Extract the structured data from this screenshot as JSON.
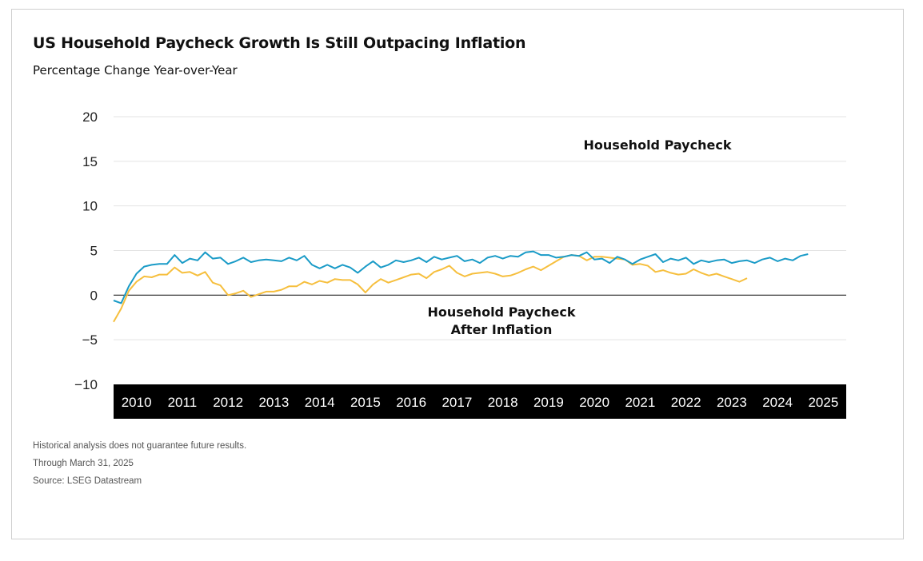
{
  "title": "US Household Paycheck Growth Is Still Outpacing Inflation",
  "subtitle": "Percentage Change Year-over-Year",
  "footnotes": [
    "Historical analysis does not guarantee future results.",
    "Through March 31, 2025",
    "Source: LSEG Datastream"
  ],
  "colors": {
    "household_paycheck": "#1a9bc7",
    "after_inflation": "#f6bf3e",
    "axis_band": "#000000",
    "gridline": "#e3e3e3"
  },
  "chart_data": {
    "type": "line",
    "title": "US Household Paycheck Growth Is Still Outpacing Inflation",
    "subtitle": "Percentage Change Year-over-Year",
    "xlabel": "",
    "ylabel": "",
    "ylim": [
      -10,
      20
    ],
    "yticks": [
      20,
      15,
      10,
      5,
      0,
      -5,
      -10
    ],
    "ytick_labels": [
      "20",
      "15",
      "10",
      "5",
      "0",
      "−5",
      "−10"
    ],
    "xlim": [
      "2010-01",
      "2025-12"
    ],
    "xticks": [
      "2010",
      "2011",
      "2012",
      "2013",
      "2014",
      "2015",
      "2016",
      "2017",
      "2018",
      "2019",
      "2020",
      "2021",
      "2022",
      "2023",
      "2024",
      "2025"
    ],
    "grid": true,
    "legend": "none",
    "annotations": [
      {
        "text": "Household Paycheck",
        "series": 0
      },
      {
        "text": "Household Paycheck After Inflation",
        "lines": [
          "Household Paycheck",
          "After Inflation"
        ],
        "series": 1
      }
    ],
    "series": [
      {
        "name": "Household Paycheck",
        "color": "#1a9bc7",
        "points": [
          [
            "2010-01",
            -0.6
          ],
          [
            "2010-03",
            -0.9
          ],
          [
            "2010-05",
            1.0
          ],
          [
            "2010-07",
            2.4
          ],
          [
            "2010-09",
            3.2
          ],
          [
            "2010-11",
            3.4
          ],
          [
            "2011-01",
            3.5
          ],
          [
            "2011-03",
            3.5
          ],
          [
            "2011-05",
            4.5
          ],
          [
            "2011-07",
            3.6
          ],
          [
            "2011-09",
            4.1
          ],
          [
            "2011-11",
            3.9
          ],
          [
            "2012-01",
            4.8
          ],
          [
            "2012-03",
            4.1
          ],
          [
            "2012-05",
            4.2
          ],
          [
            "2012-07",
            3.5
          ],
          [
            "2012-09",
            3.8
          ],
          [
            "2012-11",
            4.2
          ],
          [
            "2013-01",
            3.7
          ],
          [
            "2013-03",
            3.9
          ],
          [
            "2013-05",
            4.0
          ],
          [
            "2013-07",
            3.9
          ],
          [
            "2013-09",
            3.8
          ],
          [
            "2013-11",
            4.2
          ],
          [
            "2014-01",
            3.9
          ],
          [
            "2014-03",
            4.4
          ],
          [
            "2014-05",
            3.4
          ],
          [
            "2014-07",
            3.0
          ],
          [
            "2014-09",
            3.4
          ],
          [
            "2014-11",
            3.0
          ],
          [
            "2015-01",
            3.4
          ],
          [
            "2015-03",
            3.1
          ],
          [
            "2015-05",
            2.5
          ],
          [
            "2015-07",
            3.2
          ],
          [
            "2015-09",
            3.8
          ],
          [
            "2015-11",
            3.1
          ],
          [
            "2016-01",
            3.4
          ],
          [
            "2016-03",
            3.9
          ],
          [
            "2016-05",
            3.7
          ],
          [
            "2016-07",
            3.9
          ],
          [
            "2016-09",
            4.2
          ],
          [
            "2016-11",
            3.7
          ],
          [
            "2017-01",
            4.3
          ],
          [
            "2017-03",
            4.0
          ],
          [
            "2017-05",
            4.2
          ],
          [
            "2017-07",
            4.4
          ],
          [
            "2017-09",
            3.8
          ],
          [
            "2017-11",
            4.0
          ],
          [
            "2018-01",
            3.6
          ],
          [
            "2018-03",
            4.2
          ],
          [
            "2018-05",
            4.4
          ],
          [
            "2018-07",
            4.1
          ],
          [
            "2018-09",
            4.4
          ],
          [
            "2018-11",
            4.3
          ],
          [
            "2019-01",
            4.8
          ],
          [
            "2019-03",
            4.9
          ],
          [
            "2019-05",
            4.5
          ],
          [
            "2019-07",
            4.5
          ],
          [
            "2019-09",
            4.2
          ],
          [
            "2019-11",
            4.3
          ],
          [
            "2020-01",
            4.5
          ],
          [
            "2020-03",
            4.4
          ],
          [
            "2020-05",
            4.8
          ],
          [
            "2020-07",
            4.0
          ],
          [
            "2020-09",
            4.1
          ],
          [
            "2020-11",
            3.6
          ],
          [
            "2021-01",
            4.3
          ],
          [
            "2021-03",
            4.0
          ],
          [
            "2021-05",
            3.5
          ],
          [
            "2021-07",
            4.0
          ],
          [
            "2021-09",
            4.3
          ],
          [
            "2021-11",
            4.6
          ],
          [
            "2022-01",
            3.7
          ],
          [
            "2022-03",
            4.1
          ],
          [
            "2022-05",
            3.9
          ],
          [
            "2022-07",
            4.2
          ],
          [
            "2022-09",
            3.5
          ],
          [
            "2022-11",
            3.9
          ],
          [
            "2023-01",
            3.7
          ],
          [
            "2023-03",
            3.9
          ],
          [
            "2023-05",
            4.0
          ],
          [
            "2023-07",
            3.6
          ],
          [
            "2023-09",
            3.8
          ],
          [
            "2023-11",
            3.9
          ],
          [
            "2024-01",
            3.6
          ],
          [
            "2024-03",
            4.0
          ],
          [
            "2024-05",
            4.2
          ],
          [
            "2024-07",
            3.8
          ],
          [
            "2024-09",
            4.1
          ],
          [
            "2024-11",
            3.9
          ],
          [
            "2025-01",
            4.4
          ],
          [
            "2025-03",
            4.6
          ]
        ]
      },
      {
        "name": "Household Paycheck After Inflation",
        "color": "#f6bf3e",
        "points": [
          [
            "2010-01",
            -3.0
          ],
          [
            "2010-03",
            -1.5
          ],
          [
            "2010-05",
            0.5
          ],
          [
            "2010-07",
            1.5
          ],
          [
            "2010-09",
            2.1
          ],
          [
            "2010-11",
            2.0
          ],
          [
            "2011-01",
            2.3
          ],
          [
            "2011-03",
            2.3
          ],
          [
            "2011-05",
            3.1
          ],
          [
            "2011-07",
            2.5
          ],
          [
            "2011-09",
            2.6
          ],
          [
            "2011-11",
            2.2
          ],
          [
            "2012-01",
            2.6
          ],
          [
            "2012-03",
            1.4
          ],
          [
            "2012-05",
            1.1
          ],
          [
            "2012-07",
            0.0
          ],
          [
            "2012-09",
            0.2
          ],
          [
            "2012-11",
            0.5
          ],
          [
            "2013-01",
            -0.2
          ],
          [
            "2013-03",
            0.1
          ],
          [
            "2013-05",
            0.4
          ],
          [
            "2013-07",
            0.4
          ],
          [
            "2013-09",
            0.6
          ],
          [
            "2013-11",
            1.0
          ],
          [
            "2014-01",
            1.0
          ],
          [
            "2014-03",
            1.5
          ],
          [
            "2014-05",
            1.2
          ],
          [
            "2014-07",
            1.6
          ],
          [
            "2014-09",
            1.4
          ],
          [
            "2014-11",
            1.8
          ],
          [
            "2015-01",
            1.7
          ],
          [
            "2015-03",
            1.7
          ],
          [
            "2015-05",
            1.2
          ],
          [
            "2015-07",
            0.3
          ],
          [
            "2015-09",
            1.2
          ],
          [
            "2015-11",
            1.8
          ],
          [
            "2016-01",
            1.4
          ],
          [
            "2016-03",
            1.7
          ],
          [
            "2016-05",
            2.0
          ],
          [
            "2016-07",
            2.3
          ],
          [
            "2016-09",
            2.4
          ],
          [
            "2016-11",
            1.9
          ],
          [
            "2017-01",
            2.6
          ],
          [
            "2017-03",
            2.9
          ],
          [
            "2017-05",
            3.3
          ],
          [
            "2017-07",
            2.5
          ],
          [
            "2017-09",
            2.1
          ],
          [
            "2017-11",
            2.4
          ],
          [
            "2018-01",
            2.5
          ],
          [
            "2018-03",
            2.6
          ],
          [
            "2018-05",
            2.4
          ],
          [
            "2018-07",
            2.1
          ],
          [
            "2018-09",
            2.2
          ],
          [
            "2018-11",
            2.5
          ],
          [
            "2019-01",
            2.9
          ],
          [
            "2019-03",
            3.2
          ],
          [
            "2019-05",
            2.8
          ],
          [
            "2019-07",
            3.3
          ],
          [
            "2019-09",
            3.8
          ],
          [
            "2019-11",
            4.3
          ],
          [
            "2020-01",
            4.5
          ],
          [
            "2020-03",
            4.4
          ],
          [
            "2020-05",
            3.9
          ],
          [
            "2020-07",
            4.3
          ],
          [
            "2020-09",
            4.3
          ],
          [
            "2020-11",
            4.2
          ],
          [
            "2021-01",
            4.1
          ],
          [
            "2021-03",
            4.0
          ],
          [
            "2021-05",
            3.4
          ],
          [
            "2021-07",
            3.5
          ],
          [
            "2021-09",
            3.3
          ],
          [
            "2021-11",
            2.6
          ],
          [
            "2022-01",
            2.8
          ],
          [
            "2022-03",
            2.5
          ],
          [
            "2022-05",
            2.3
          ],
          [
            "2022-07",
            2.4
          ],
          [
            "2022-09",
            2.9
          ],
          [
            "2022-11",
            2.5
          ],
          [
            "2023-01",
            2.2
          ],
          [
            "2023-03",
            2.4
          ],
          [
            "2023-05",
            2.1
          ],
          [
            "2023-07",
            1.8
          ],
          [
            "2023-09",
            1.5
          ],
          [
            "2023-11",
            1.9
          ]
        ]
      }
    ]
  }
}
